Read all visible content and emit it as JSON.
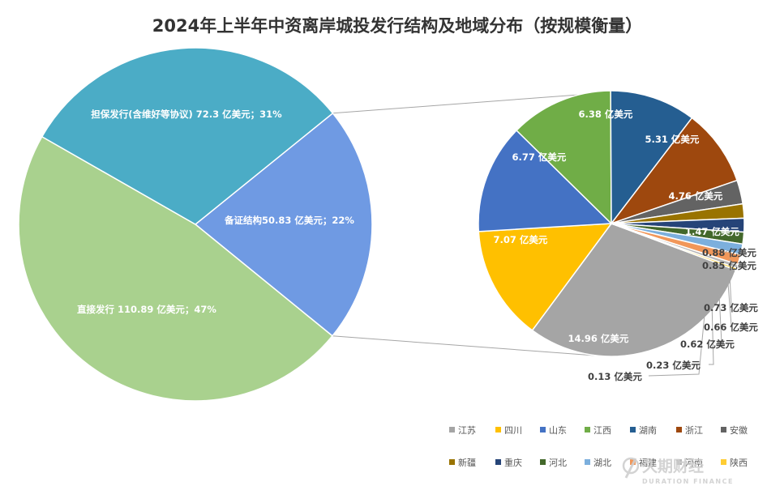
{
  "chart_data": [
    {
      "type": "pie",
      "title": "2024年上半年中资离岸城投发行结构及地域分布（按规模衡量）",
      "slices": [
        {
          "name": "担保发行(含维好等协议)",
          "value": 72.3,
          "unit": "亿美元",
          "percent": "31%",
          "label": "担保发行(含维好等协议) 72.3 亿美元；31%",
          "color": "#4BACC6"
        },
        {
          "name": "备证结构",
          "value": 50.83,
          "unit": "亿美元",
          "percent": "22%",
          "label": "备证结构50.83 亿美元；22%",
          "color": "#6F9AE3"
        },
        {
          "name": "直接发行",
          "value": 110.89,
          "unit": "亿美元",
          "percent": "47%",
          "label": "直接发行 110.89 亿美元；47%",
          "color": "#A9D18E"
        }
      ]
    },
    {
      "type": "pie",
      "unit": "亿美元",
      "slices": [
        {
          "name": "江苏",
          "value": 14.96,
          "label": "14.96 亿美元",
          "color": "#A5A5A5"
        },
        {
          "name": "四川",
          "value": 7.07,
          "label": "7.07 亿美元",
          "color": "#FFC000"
        },
        {
          "name": "山东",
          "value": 6.77,
          "label": "6.77 亿美元",
          "color": "#4472C4"
        },
        {
          "name": "江西",
          "value": 6.38,
          "label": "6.38 亿美元",
          "color": "#70AD47"
        },
        {
          "name": "湖南",
          "value": 5.31,
          "label": "5.31 亿美元",
          "color": "#255E91"
        },
        {
          "name": "浙江",
          "value": 4.76,
          "label": "4.76 亿美元",
          "color": "#9E480E"
        },
        {
          "name": "安徽",
          "value": 1.47,
          "label": "1.47 亿美元",
          "color": "#636363"
        },
        {
          "name": "新疆",
          "value": 0.88,
          "label": "0.88 亿美元",
          "color": "#997300"
        },
        {
          "name": "重庆",
          "value": 0.85,
          "label": "0.85 亿美元",
          "color": "#264478"
        },
        {
          "name": "河北",
          "value": 0.73,
          "label": "0.73 亿美元",
          "color": "#43682B"
        },
        {
          "name": "湖北",
          "value": 0.66,
          "label": "0.66 亿美元",
          "color": "#7CAFDD"
        },
        {
          "name": "福建",
          "value": 0.62,
          "label": "0.62 亿美元",
          "color": "#F1975A"
        },
        {
          "name": "河南",
          "value": 0.23,
          "label": "0.23 亿美元",
          "color": "#B7B7B7"
        },
        {
          "name": "陕西",
          "value": 0.13,
          "label": "0.13 亿美元",
          "color": "#FFCD33"
        }
      ],
      "legend_position": "bottom-right"
    }
  ],
  "watermark": {
    "main": "久期财经",
    "sub": "DURATION FINANCE"
  }
}
